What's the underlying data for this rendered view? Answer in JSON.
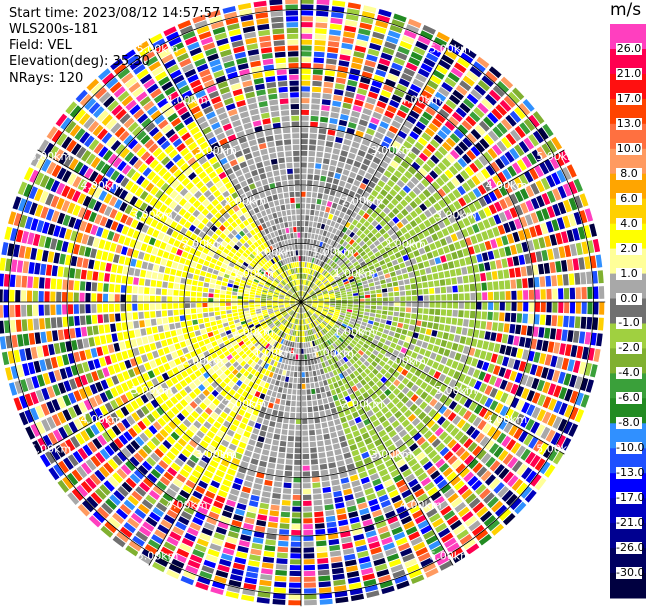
{
  "info": {
    "start_time": "Start time: 2023/08/12 14:57:57",
    "station": "WLS200s-181",
    "field": "Field: VEL",
    "elevation": "Elevation(deg): 35.30",
    "nrays": "NRays: 120"
  },
  "colorbar": {
    "unit": "m/s",
    "ticks": [
      "26.0",
      "21.0",
      "17.0",
      "13.0",
      "10.0",
      "8.0",
      "6.0",
      "4.0",
      "2.0",
      "1.0",
      "0.0",
      "-1.0",
      "-2.0",
      "-4.0",
      "-6.0",
      "-8.0",
      "-10.0",
      "-13.0",
      "-17.0",
      "-21.0",
      "-26.0",
      "-30.0"
    ],
    "colors": [
      "#ff3fbf",
      "#ff0050",
      "#ff1010",
      "#ff4400",
      "#ff7040",
      "#ff9a60",
      "#ffa500",
      "#ffd000",
      "#ffff00",
      "#ffff99",
      "#a8a8a8",
      "#707070",
      "#a0d040",
      "#80b030",
      "#3aa03a",
      "#228b22",
      "#3090ff",
      "#1e50ff",
      "#0000ff",
      "#0000c0",
      "#000090",
      "#000060",
      "#000040"
    ]
  },
  "chart_data": {
    "type": "heatmap",
    "projection": "polar",
    "field": "VEL",
    "nrays": 120,
    "elevation_deg": 35.3,
    "unit": "m/s",
    "range_rings_km": [
      1.0,
      2.0,
      3.0,
      4.0,
      5.0
    ],
    "ring_labels": [
      "1.00km",
      "2.00km",
      "3.00km",
      "4.00km",
      "5.00km"
    ],
    "color_levels": [
      -30.0,
      -26.0,
      -21.0,
      -17.0,
      -13.0,
      -10.0,
      -8.0,
      -6.0,
      -4.0,
      -2.0,
      -1.0,
      0.0,
      1.0,
      2.0,
      4.0,
      6.0,
      8.0,
      10.0,
      13.0,
      17.0,
      21.0,
      26.0
    ],
    "max_range_km": 5.2,
    "radial_field": [
      {
        "range_km": [
          0.0,
          0.7
        ],
        "dominant": "yellow/green mixed, 0 to 2 m/s"
      },
      {
        "range_km": [
          0.7,
          2.0
        ],
        "west": "2.0 to 1.0 m/s (yellow)",
        "east": "-1.0 to -2.0 m/s (green)",
        "north_south": "0.0 m/s (gray)"
      },
      {
        "range_km": [
          2.0,
          3.0
        ],
        "west": "2.0 m/s (yellow)",
        "east": "-2.0 m/s (green)"
      },
      {
        "range_km": [
          3.0,
          5.2
        ],
        "dominant": "noisy, full color range -30 to 26 m/s"
      }
    ]
  }
}
